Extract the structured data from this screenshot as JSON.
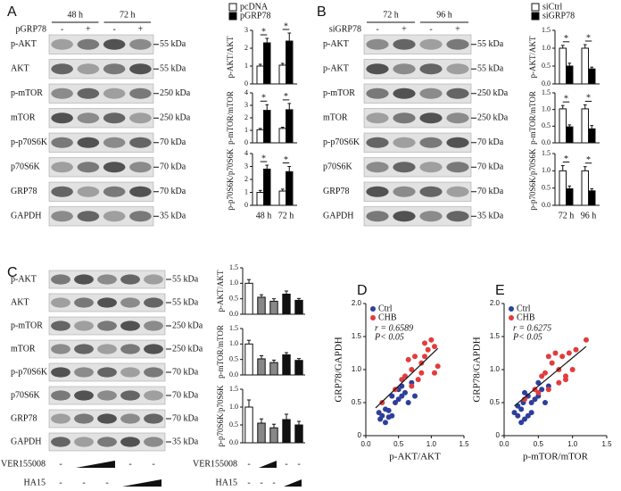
{
  "panel_labels": [
    "A",
    "B",
    "C",
    "D",
    "E"
  ],
  "blots": [
    {
      "headers": [
        "48 h",
        "72 h"
      ],
      "treatment": "pGRP78",
      "signs": [
        "-",
        "+",
        "-",
        "+"
      ],
      "rows": [
        "p-AKT",
        "AKT",
        "p-mTOR",
        "mTOR",
        "p-p70S6K",
        "p70S6K",
        "GRP78",
        "GAPDH"
      ],
      "markers": [
        "55 kDa",
        "55 kDa",
        "250 kDa",
        "250 kDa",
        "70 kDa",
        "70 kDa",
        "70 kDa",
        "35 kDa"
      ]
    },
    {
      "headers": [
        "72 h",
        "96 h"
      ],
      "treatment": "siGRP78",
      "signs": [
        "-",
        "+",
        "-",
        "+"
      ],
      "rows": [
        "p-AKT",
        "p-AKT",
        "p-mTOR",
        "mTOR",
        "p-p70S6K",
        "p70S6K",
        "GRP78",
        "GAPDH"
      ],
      "markers": [
        "55 kDa",
        "55 kDa",
        "250 kDa",
        "250 kDa",
        "70 kDa",
        "70 kDa",
        "70 kDa",
        "35 kDa"
      ]
    },
    {
      "rows": [
        "p-AKT",
        "AKT",
        "p-mTOR",
        "mTOR",
        "p-p70S6K",
        "p70S6K",
        "GRP78",
        "GAPDH"
      ],
      "markers": [
        "55 kDa",
        "55 kDa",
        "250 kDa",
        "250 kDa",
        "70 kDa",
        "70 kDa",
        "70 kDa",
        "35 kDa"
      ],
      "treatments": [
        {
          "name": "VER155008",
          "signs": [
            "-",
            "-",
            "-"
          ]
        },
        {
          "name": "HA15",
          "signs": [
            "-",
            "-",
            "-"
          ]
        }
      ]
    }
  ],
  "chart_data": [
    {
      "type": "bar",
      "ylabel": "p-AKT/AKT",
      "categories": [
        null,
        null
      ],
      "ylim": [
        0,
        3
      ],
      "yticks": [
        0,
        1,
        2,
        3
      ],
      "annotations": [
        "*",
        "*"
      ],
      "series": [
        {
          "name": "pcDNA",
          "color": "#ffffff",
          "values": [
            1.0,
            1.05
          ],
          "errors": [
            0.1,
            0.1
          ]
        },
        {
          "name": "pGRP78",
          "color": "#000000",
          "values": [
            2.3,
            2.4
          ],
          "errors": [
            0.25,
            0.45
          ]
        }
      ]
    },
    {
      "type": "bar",
      "ylabel": "p-mTOR/mTOR",
      "categories": [
        null,
        null
      ],
      "ylim": [
        0,
        4
      ],
      "yticks": [
        0,
        1,
        2,
        3,
        4
      ],
      "annotations": [
        "*",
        "*"
      ],
      "series": [
        {
          "color": "#ffffff",
          "values": [
            1.05,
            1.15
          ],
          "errors": [
            0.1,
            0.1
          ]
        },
        {
          "color": "#000000",
          "values": [
            2.6,
            2.65
          ],
          "errors": [
            0.45,
            0.5
          ]
        }
      ]
    },
    {
      "type": "bar",
      "ylabel": "p-p70S6K/p70S6K",
      "categories": [
        "48 h",
        "72 h"
      ],
      "ylim": [
        0,
        4
      ],
      "yticks": [
        0,
        1,
        2,
        3,
        4
      ],
      "annotations": [
        "*",
        "*"
      ],
      "series": [
        {
          "color": "#ffffff",
          "values": [
            1.0,
            1.1
          ],
          "errors": [
            0.15,
            0.15
          ]
        },
        {
          "color": "#000000",
          "values": [
            2.8,
            2.6
          ],
          "errors": [
            0.3,
            0.4
          ]
        }
      ]
    },
    {
      "type": "bar",
      "ylabel": "p-AKT/AKT",
      "categories": [
        null,
        null
      ],
      "ylim": [
        0,
        1.5
      ],
      "yticks": [
        {
          "value": 0,
          "label": "0.0"
        },
        0.5,
        {
          "value": 1,
          "label": "1.0"
        },
        1.5
      ],
      "annotations": [
        "*",
        "*"
      ],
      "series": [
        {
          "name": "siCtrl",
          "color": "#ffffff",
          "values": [
            1.0,
            1.0
          ],
          "errors": [
            0.08,
            0.1
          ]
        },
        {
          "name": "siGRP78",
          "color": "#000000",
          "values": [
            0.5,
            0.42
          ],
          "errors": [
            0.08,
            0.05
          ]
        }
      ]
    },
    {
      "type": "bar",
      "ylabel": "p-mTOR/mTOR",
      "categories": [
        null,
        null
      ],
      "ylim": [
        0,
        1.5
      ],
      "yticks": [
        {
          "value": 0,
          "label": "0.0"
        },
        0.5,
        {
          "value": 1,
          "label": "1.0"
        },
        1.5
      ],
      "annotations": [
        "*",
        "*"
      ],
      "series": [
        {
          "color": "#ffffff",
          "values": [
            1.02,
            1.02
          ],
          "errors": [
            0.1,
            0.12
          ]
        },
        {
          "color": "#000000",
          "values": [
            0.48,
            0.42
          ],
          "errors": [
            0.06,
            0.1
          ]
        }
      ]
    },
    {
      "type": "bar",
      "ylabel": "p-p70S6K/p70S6K",
      "categories": [
        "72 h",
        "96 h"
      ],
      "ylim": [
        0,
        1.5
      ],
      "yticks": [
        {
          "value": 0,
          "label": "0.0"
        },
        0.5,
        {
          "value": 1,
          "label": "1.0"
        },
        1.5
      ],
      "annotations": [
        "*",
        "*"
      ],
      "series": [
        {
          "color": "#ffffff",
          "values": [
            1.0,
            1.0
          ],
          "errors": [
            0.15,
            0.12
          ]
        },
        {
          "color": "#000000",
          "values": [
            0.48,
            0.42
          ],
          "errors": [
            0.08,
            0.06
          ]
        }
      ]
    },
    {
      "type": "bar",
      "ylabel": "p-AKT/AKT",
      "categories": [
        null,
        null,
        null,
        null,
        null
      ],
      "ylim": [
        0,
        1.5
      ],
      "yticks": [
        {
          "value": 0,
          "label": "0.0"
        },
        0.5,
        {
          "value": 1,
          "label": "1.0"
        },
        1.5
      ],
      "series": [
        {
          "colors": [
            "#ffffff",
            "#888888",
            "#888888",
            "#111111",
            "#111111"
          ],
          "values": [
            1.0,
            0.55,
            0.42,
            0.65,
            0.45
          ],
          "errors": [
            0.12,
            0.08,
            0.08,
            0.1,
            0.06
          ]
        }
      ]
    },
    {
      "type": "bar",
      "ylabel": "p-mTOR/mTOR",
      "categories": [
        null,
        null,
        null,
        null,
        null
      ],
      "ylim": [
        0,
        1.5
      ],
      "yticks": [
        {
          "value": 0,
          "label": "0.0"
        },
        0.5,
        {
          "value": 1,
          "label": "1.0"
        },
        1.5
      ],
      "series": [
        {
          "colors": [
            "#ffffff",
            "#888888",
            "#888888",
            "#111111",
            "#111111"
          ],
          "values": [
            1.0,
            0.52,
            0.4,
            0.65,
            0.47
          ],
          "errors": [
            0.12,
            0.1,
            0.08,
            0.07,
            0.06
          ]
        }
      ]
    },
    {
      "type": "bar",
      "ylabel": "p-p70S6K/p70S6K",
      "categories": [
        null,
        null,
        null,
        null,
        null
      ],
      "ylim": [
        0,
        1.5
      ],
      "yticks": [
        {
          "value": 0,
          "label": "0.0"
        },
        0.5,
        {
          "value": 1,
          "label": "1.0"
        },
        1.5
      ],
      "series": [
        {
          "colors": [
            "#ffffff",
            "#888888",
            "#888888",
            "#111111",
            "#111111"
          ],
          "values": [
            1.0,
            0.55,
            0.42,
            0.65,
            0.5
          ],
          "errors": [
            0.2,
            0.12,
            0.1,
            0.15,
            0.1
          ]
        }
      ],
      "treatments": [
        {
          "name": "VER155008",
          "signs": [
            "-",
            "-",
            "-"
          ]
        },
        {
          "name": "HA15",
          "signs": [
            "-",
            "-",
            "-"
          ]
        }
      ]
    },
    {
      "type": "scatter",
      "xlabel": "p-AKT/AKT",
      "ylabel": "GRP78/GAPDH",
      "xlim": [
        0,
        1.5
      ],
      "ylim": [
        0,
        2
      ],
      "xticks": [
        {
          "value": 0,
          "label": "0.0"
        },
        0.5,
        {
          "value": 1,
          "label": "1.0"
        },
        1.5
      ],
      "yticks": [
        0,
        0.5,
        {
          "value": 1,
          "label": "1.0"
        },
        1.5,
        {
          "value": 2,
          "label": "2.0"
        }
      ],
      "annotations": [
        "r = 0.6589",
        "P< 0.05"
      ],
      "fit": {
        "x": [
          0.15,
          1.1
        ],
        "y": [
          0.42,
          1.32
        ]
      },
      "series": [
        {
          "name": "Ctrl",
          "color": "#2d3f9a",
          "x": [
            0.2,
            0.25,
            0.3,
            0.22,
            0.35,
            0.4,
            0.45,
            0.5,
            0.55,
            0.6,
            0.4,
            0.3,
            0.5,
            0.65,
            0.7,
            0.55,
            0.75,
            0.35
          ],
          "y": [
            0.35,
            0.3,
            0.4,
            0.25,
            0.38,
            0.3,
            0.5,
            0.55,
            0.6,
            0.65,
            0.6,
            0.2,
            0.7,
            0.5,
            0.8,
            0.75,
            0.6,
            0.28
          ]
        },
        {
          "name": "CHB",
          "color": "#e23c3c",
          "x": [
            0.25,
            0.45,
            0.6,
            0.7,
            0.8,
            0.85,
            0.9,
            0.95,
            1.0,
            1.05,
            0.75,
            0.65,
            0.85,
            1.05,
            1.1,
            0.55,
            0.9,
            0.7
          ],
          "y": [
            0.5,
            0.7,
            0.9,
            1.0,
            0.85,
            1.1,
            1.2,
            1.3,
            1.45,
            1.35,
            1.2,
            1.15,
            0.95,
            0.95,
            1.05,
            0.85,
            1.4,
            0.75
          ]
        }
      ]
    },
    {
      "type": "scatter",
      "xlabel": "p-mTOR/mTOR",
      "ylabel": "GRP78/GAPDH",
      "xlim": [
        0,
        1.5
      ],
      "ylim": [
        0,
        2
      ],
      "xticks": [
        {
          "value": 0,
          "label": "0.0"
        },
        0.5,
        {
          "value": 1,
          "label": "1.0"
        },
        1.5
      ],
      "yticks": [
        0,
        0.5,
        {
          "value": 1,
          "label": "1.0"
        },
        1.5,
        {
          "value": 2,
          "label": "2.0"
        }
      ],
      "annotations": [
        "r = 0.6275",
        "P< 0.05"
      ],
      "fit": {
        "x": [
          0.15,
          1.2
        ],
        "y": [
          0.45,
          1.35
        ]
      },
      "series": [
        {
          "name": "Ctrl",
          "color": "#2d3f9a",
          "x": [
            0.15,
            0.2,
            0.25,
            0.3,
            0.2,
            0.35,
            0.4,
            0.45,
            0.5,
            0.3,
            0.25,
            0.55,
            0.6,
            0.4,
            0.35,
            0.5,
            0.65,
            0.28
          ],
          "y": [
            0.35,
            0.3,
            0.4,
            0.25,
            0.45,
            0.3,
            0.5,
            0.55,
            0.6,
            0.65,
            0.2,
            0.7,
            0.5,
            0.35,
            0.6,
            0.8,
            0.75,
            0.5
          ]
        },
        {
          "name": "CHB",
          "color": "#e23c3c",
          "x": [
            0.3,
            0.45,
            0.55,
            0.65,
            0.75,
            0.8,
            0.85,
            0.9,
            1.0,
            1.2,
            0.7,
            0.6,
            0.95,
            0.5,
            1.05,
            0.8,
            0.9,
            0.65
          ],
          "y": [
            0.55,
            0.7,
            0.9,
            1.2,
            1.25,
            1.0,
            1.2,
            0.9,
            1.0,
            1.45,
            1.1,
            0.95,
            1.25,
            0.65,
            1.3,
            0.8,
            0.85,
            0.7
          ]
        }
      ]
    }
  ]
}
